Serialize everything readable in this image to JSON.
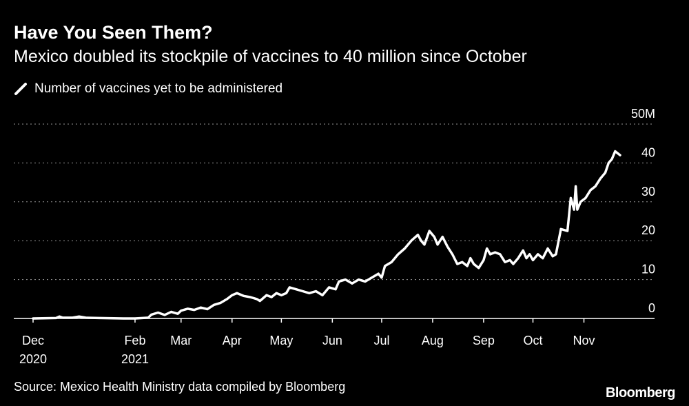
{
  "title": "Have You Seen Them?",
  "subtitle": "Mexico doubled its stockpile of vaccines to 40 million since October",
  "source": "Source: Mexico Health Ministry data compiled by Bloomberg",
  "brand": "Bloomberg",
  "colors": {
    "background": "#000000",
    "line": "#ffffff",
    "grid": "#9a9a9a"
  },
  "chart_data": {
    "type": "line",
    "title": "Have You Seen Them?",
    "subtitle": "Mexico doubled its stockpile of vaccines to 40 million since October",
    "xlabel": "",
    "ylabel": "",
    "ylim": [
      0,
      50
    ],
    "y_ticks": [
      {
        "value": 50,
        "label": "50M"
      },
      {
        "value": 40,
        "label": "40"
      },
      {
        "value": 30,
        "label": "30"
      },
      {
        "value": 20,
        "label": "20"
      },
      {
        "value": 10,
        "label": "10"
      },
      {
        "value": 0,
        "label": "0"
      }
    ],
    "x_ticks": [
      {
        "day": 0,
        "line1": "Dec",
        "line2": "2020"
      },
      {
        "day": 62,
        "line1": "Feb",
        "line2": "2021"
      },
      {
        "day": 90,
        "line1": "Mar",
        "line2": ""
      },
      {
        "day": 121,
        "line1": "Apr",
        "line2": ""
      },
      {
        "day": 151,
        "line1": "May",
        "line2": ""
      },
      {
        "day": 182,
        "line1": "Jun",
        "line2": ""
      },
      {
        "day": 212,
        "line1": "Jul",
        "line2": ""
      },
      {
        "day": 243,
        "line1": "Aug",
        "line2": ""
      },
      {
        "day": 274,
        "line1": "Sep",
        "line2": ""
      },
      {
        "day": 304,
        "line1": "Oct",
        "line2": ""
      },
      {
        "day": 335,
        "line1": "Nov",
        "line2": ""
      }
    ],
    "x_unit": "days since Dec 1, 2020",
    "xlim": [
      -12,
      360
    ],
    "grid": true,
    "legend": "top-left",
    "series": [
      {
        "name": "Number of vaccines yet to be administered",
        "points": [
          [
            0,
            0
          ],
          [
            14,
            0.1
          ],
          [
            16,
            0.5
          ],
          [
            18,
            0.2
          ],
          [
            24,
            0.2
          ],
          [
            28,
            0.5
          ],
          [
            32,
            0.2
          ],
          [
            40,
            0.1
          ],
          [
            55,
            0
          ],
          [
            62,
            0
          ],
          [
            70,
            0.2
          ],
          [
            72,
            1.0
          ],
          [
            76,
            1.5
          ],
          [
            80,
            0.9
          ],
          [
            84,
            1.7
          ],
          [
            88,
            1.2
          ],
          [
            90,
            2.0
          ],
          [
            94,
            2.5
          ],
          [
            98,
            2.2
          ],
          [
            102,
            2.8
          ],
          [
            106,
            2.4
          ],
          [
            110,
            3.5
          ],
          [
            114,
            4.0
          ],
          [
            118,
            5.0
          ],
          [
            121,
            6.0
          ],
          [
            124,
            6.5
          ],
          [
            128,
            5.8
          ],
          [
            132,
            5.5
          ],
          [
            136,
            5.0
          ],
          [
            138,
            4.5
          ],
          [
            142,
            6.0
          ],
          [
            145,
            5.5
          ],
          [
            148,
            6.5
          ],
          [
            151,
            6.0
          ],
          [
            154,
            6.5
          ],
          [
            156,
            8.0
          ],
          [
            160,
            7.5
          ],
          [
            164,
            7.0
          ],
          [
            168,
            6.5
          ],
          [
            172,
            7.0
          ],
          [
            176,
            6.0
          ],
          [
            180,
            8.0
          ],
          [
            184,
            7.5
          ],
          [
            186,
            9.5
          ],
          [
            190,
            10.0
          ],
          [
            194,
            9.0
          ],
          [
            198,
            10.0
          ],
          [
            202,
            9.5
          ],
          [
            206,
            10.5
          ],
          [
            210,
            11.5
          ],
          [
            212,
            10.5
          ],
          [
            214,
            13.5
          ],
          [
            218,
            14.5
          ],
          [
            222,
            16.5
          ],
          [
            226,
            18.0
          ],
          [
            230,
            20.0
          ],
          [
            234,
            21.5
          ],
          [
            236,
            20.0
          ],
          [
            238,
            19.0
          ],
          [
            241,
            22.5
          ],
          [
            244,
            21.0
          ],
          [
            246,
            19.0
          ],
          [
            249,
            21.0
          ],
          [
            252,
            18.5
          ],
          [
            255,
            16.5
          ],
          [
            258,
            14.0
          ],
          [
            261,
            14.5
          ],
          [
            264,
            13.5
          ],
          [
            266,
            15.5
          ],
          [
            268,
            14.0
          ],
          [
            271,
            13.0
          ],
          [
            274,
            15.0
          ],
          [
            276,
            18.0
          ],
          [
            278,
            16.5
          ],
          [
            281,
            17.0
          ],
          [
            284,
            16.5
          ],
          [
            287,
            14.5
          ],
          [
            290,
            15.0
          ],
          [
            292,
            14.0
          ],
          [
            295,
            15.5
          ],
          [
            298,
            17.5
          ],
          [
            300,
            15.5
          ],
          [
            302,
            16.5
          ],
          [
            304,
            15.0
          ],
          [
            307,
            16.5
          ],
          [
            310,
            15.5
          ],
          [
            313,
            18.0
          ],
          [
            316,
            16.0
          ],
          [
            318,
            16.5
          ],
          [
            321,
            23.0
          ],
          [
            325,
            22.5
          ],
          [
            327,
            31.0
          ],
          [
            329,
            28.0
          ],
          [
            330,
            34.0
          ],
          [
            331,
            28.0
          ],
          [
            333,
            30.0
          ],
          [
            336,
            31.0
          ],
          [
            339,
            33.0
          ],
          [
            342,
            34.0
          ],
          [
            345,
            36.0
          ],
          [
            348,
            37.5
          ],
          [
            350,
            40.0
          ],
          [
            352,
            41.0
          ],
          [
            354,
            43.0
          ],
          [
            357,
            42.0
          ]
        ]
      }
    ]
  }
}
